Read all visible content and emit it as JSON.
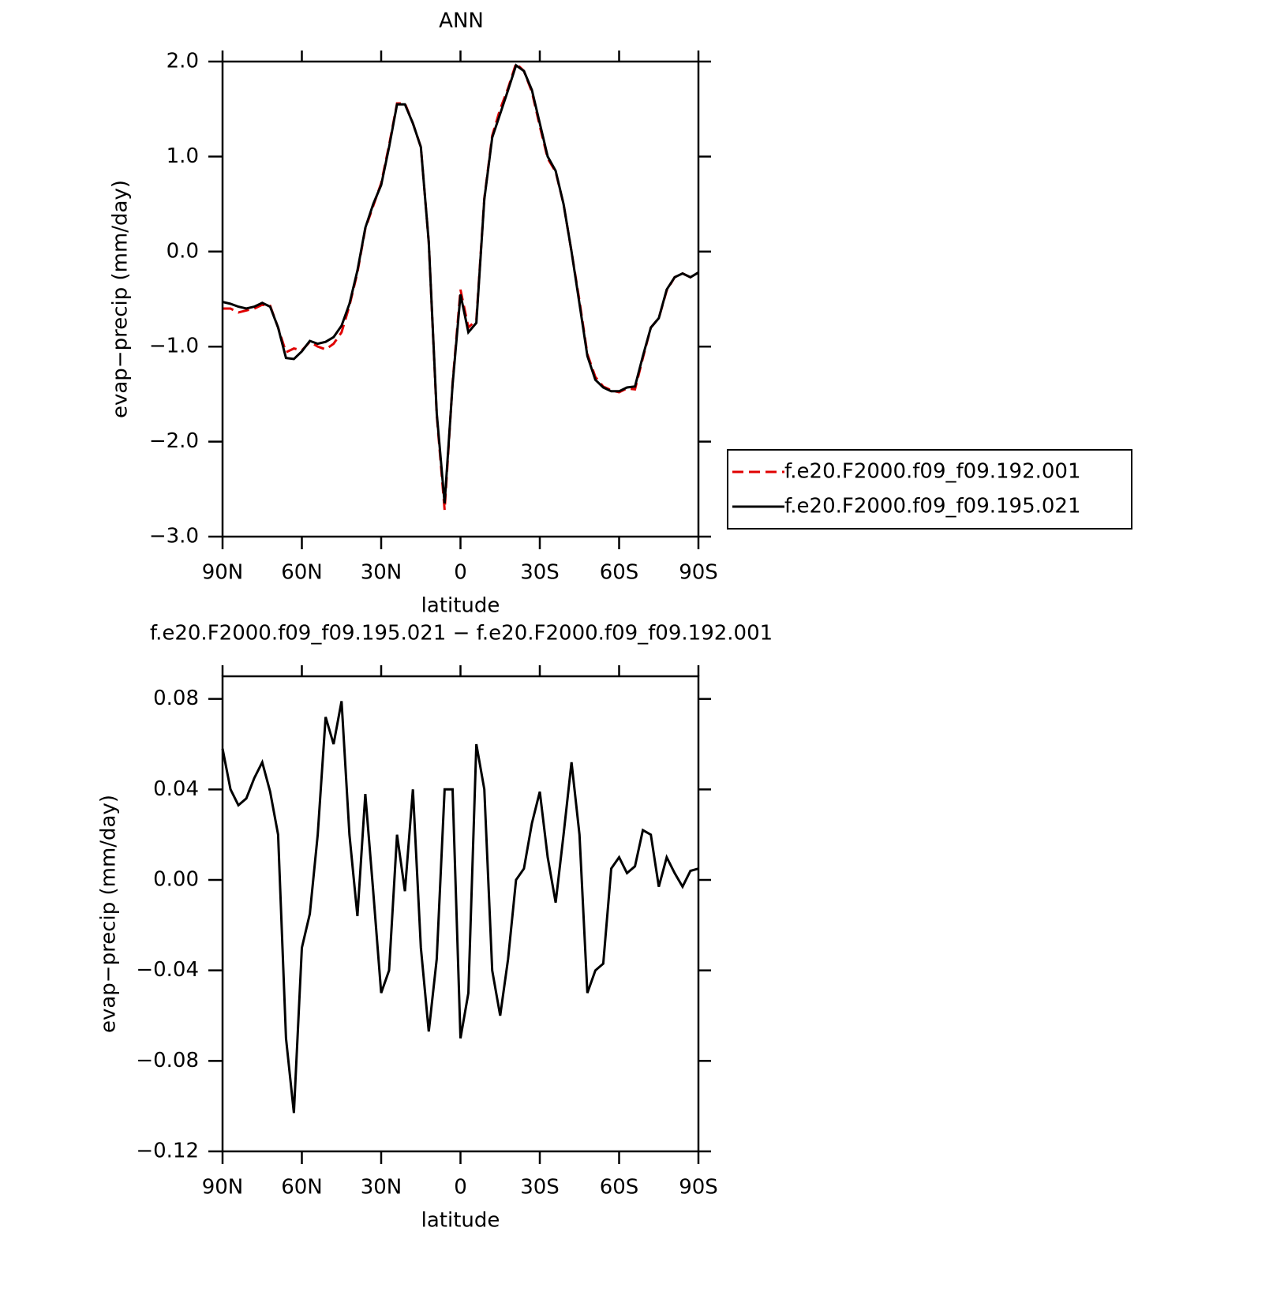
{
  "chart_data": [
    {
      "type": "line",
      "title": "ANN",
      "ylabel": "evap−precip (mm/day)",
      "xlabel": "latitude",
      "x": [
        90,
        87,
        84,
        81,
        78,
        75,
        72,
        69,
        66,
        63,
        60,
        57,
        54,
        51,
        48,
        45,
        42,
        39,
        36,
        33,
        30,
        27,
        24,
        21,
        18,
        15,
        12,
        9,
        6,
        3,
        0,
        -3,
        -6,
        -9,
        -12,
        -15,
        -18,
        -21,
        -24,
        -27,
        -30,
        -33,
        -36,
        -39,
        -42,
        -45,
        -48,
        -51,
        -54,
        -57,
        -60,
        -63,
        -66,
        -69,
        -72,
        -75,
        -78,
        -81,
        -84,
        -87,
        -90
      ],
      "xlim": [
        90,
        -90
      ],
      "xticks": [
        {
          "value": 90,
          "label": "90N"
        },
        {
          "value": 60,
          "label": "60N"
        },
        {
          "value": 30,
          "label": "30N"
        },
        0,
        {
          "value": -30,
          "label": "30S"
        },
        {
          "value": -60,
          "label": "60S"
        },
        {
          "value": -90,
          "label": "90S"
        }
      ],
      "ylim": [
        -3,
        2
      ],
      "yticks": [
        {
          "value": 2,
          "label": "2.0"
        },
        {
          "value": 1,
          "label": "1.0"
        },
        {
          "value": 0,
          "label": "0.0"
        },
        {
          "value": -1,
          "label": "−1.0"
        },
        {
          "value": -2,
          "label": "−2.0"
        },
        {
          "value": -3,
          "label": "−3.0"
        }
      ],
      "legend": "right",
      "series": [
        {
          "name": "f.e20.F2000.f09_f09.192.001",
          "color": "#e00000",
          "linestyle": "dashed",
          "values": [
            -0.6,
            -0.6,
            -0.64,
            -0.62,
            -0.6,
            -0.56,
            -0.57,
            -0.8,
            -1.06,
            -1.02,
            -1.04,
            -0.95,
            -1.0,
            -1.03,
            -0.97,
            -0.85,
            -0.57,
            -0.22,
            0.24,
            0.48,
            0.72,
            1.12,
            1.56,
            1.56,
            1.35,
            1.1,
            0.1,
            -1.72,
            -2.72,
            -1.38,
            -0.4,
            -0.8,
            -0.72,
            0.56,
            1.22,
            1.5,
            1.72,
            1.98,
            1.9,
            1.68,
            1.32,
            0.98,
            0.84,
            0.5,
            0.0,
            -0.52,
            -1.08,
            -1.32,
            -1.42,
            -1.46,
            -1.48,
            -1.44,
            -1.45,
            -1.12,
            -0.8,
            -0.7,
            -0.41,
            -0.27,
            -0.23,
            -0.27,
            -0.22
          ]
        },
        {
          "name": "f.e20.F2000.f09_f09.195.021",
          "color": "#000000",
          "linestyle": "solid",
          "values": [
            -0.53,
            -0.55,
            -0.58,
            -0.6,
            -0.58,
            -0.54,
            -0.58,
            -0.8,
            -1.12,
            -1.13,
            -1.05,
            -0.94,
            -0.97,
            -0.95,
            -0.9,
            -0.78,
            -0.55,
            -0.2,
            0.25,
            0.5,
            0.7,
            1.1,
            1.55,
            1.55,
            1.35,
            1.1,
            0.1,
            -1.7,
            -2.65,
            -1.4,
            -0.45,
            -0.85,
            -0.75,
            0.55,
            1.2,
            1.45,
            1.7,
            1.96,
            1.9,
            1.7,
            1.35,
            1.0,
            0.85,
            0.5,
            0.0,
            -0.55,
            -1.1,
            -1.35,
            -1.43,
            -1.47,
            -1.47,
            -1.43,
            -1.42,
            -1.1,
            -0.8,
            -0.7,
            -0.4,
            -0.27,
            -0.23,
            -0.27,
            -0.22
          ]
        }
      ]
    },
    {
      "type": "line",
      "title": "f.e20.F2000.f09_f09.195.021 − f.e20.F2000.f09_f09.192.001",
      "ylabel": "evap−precip (mm/day)",
      "xlabel": "latitude",
      "x": [
        90,
        87,
        84,
        81,
        78,
        75,
        72,
        69,
        66,
        63,
        60,
        57,
        54,
        51,
        48,
        45,
        42,
        39,
        36,
        33,
        30,
        27,
        24,
        21,
        18,
        15,
        12,
        9,
        6,
        3,
        0,
        -3,
        -6,
        -9,
        -12,
        -15,
        -18,
        -21,
        -24,
        -27,
        -30,
        -33,
        -36,
        -39,
        -42,
        -45,
        -48,
        -51,
        -54,
        -57,
        -60,
        -63,
        -66,
        -69,
        -72,
        -75,
        -78,
        -81,
        -84,
        -87,
        -90
      ],
      "xlim": [
        90,
        -90
      ],
      "xticks": [
        {
          "value": 90,
          "label": "90N"
        },
        {
          "value": 60,
          "label": "60N"
        },
        {
          "value": 30,
          "label": "30N"
        },
        0,
        {
          "value": -30,
          "label": "30S"
        },
        {
          "value": -60,
          "label": "60S"
        },
        {
          "value": -90,
          "label": "90S"
        }
      ],
      "ylim": [
        -0.12,
        0.09
      ],
      "yticks": [
        {
          "value": 0.08,
          "label": "0.08"
        },
        {
          "value": 0.04,
          "label": "0.04"
        },
        {
          "value": 0,
          "label": "0.00"
        },
        {
          "value": -0.04,
          "label": "−0.04"
        },
        {
          "value": -0.08,
          "label": "−0.08"
        },
        {
          "value": -0.12,
          "label": "−0.12"
        }
      ],
      "series": [
        {
          "color": "#000000",
          "linestyle": "solid",
          "values": [
            0.058,
            0.04,
            0.033,
            0.036,
            0.045,
            0.052,
            0.039,
            0.02,
            -0.07,
            -0.103,
            -0.03,
            -0.015,
            0.02,
            0.072,
            0.06,
            0.079,
            0.02,
            -0.016,
            0.038,
            -0.005,
            -0.05,
            -0.04,
            0.02,
            -0.005,
            0.04,
            -0.03,
            -0.067,
            -0.035,
            0.04,
            0.04,
            -0.07,
            -0.05,
            0.06,
            0.04,
            -0.04,
            -0.06,
            -0.035,
            0.0,
            0.005,
            0.025,
            0.039,
            0.01,
            -0.01,
            0.02,
            0.052,
            0.02,
            -0.05,
            -0.04,
            -0.037,
            0.005,
            0.01,
            0.003,
            0.006,
            0.022,
            0.02,
            -0.003,
            0.01,
            0.003,
            -0.003,
            0.004,
            0.005
          ]
        }
      ]
    }
  ]
}
